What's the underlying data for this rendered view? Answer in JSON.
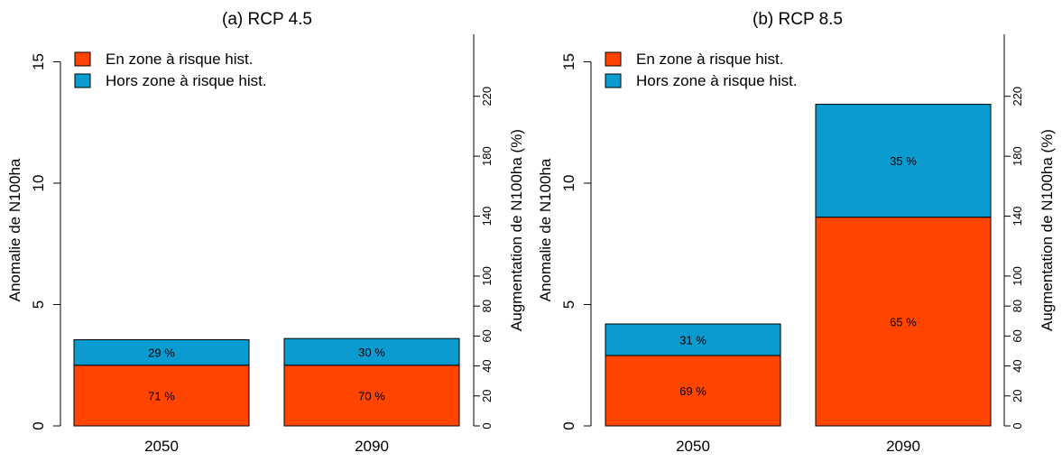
{
  "chart_data": [
    {
      "type": "bar",
      "stacked": true,
      "title": "(a) RCP 4.5",
      "ylabel": "Anomalie de N100ha",
      "y2label": "Augmentation de N100ha (%)",
      "ylim": [
        0,
        16
      ],
      "yticks": [
        0,
        5,
        10,
        15
      ],
      "y2ticks": [
        0,
        20,
        40,
        60,
        80,
        100,
        140,
        180,
        220
      ],
      "y2_per_unit": 16.2,
      "categories": [
        "2050",
        "2090"
      ],
      "series": [
        {
          "name": "En zone à risque hist.",
          "color": "#ff4500",
          "values": [
            2.5,
            2.5
          ],
          "labels": [
            "71 %",
            "70 %"
          ]
        },
        {
          "name": "Hors zone à risque hist.",
          "color": "#0a9bd1",
          "values": [
            1.05,
            1.1
          ],
          "labels": [
            "29 %",
            "30 %"
          ]
        }
      ],
      "legend": "top-left"
    },
    {
      "type": "bar",
      "stacked": true,
      "title": "(b) RCP 8.5",
      "ylabel": "Anomalie de N100ha",
      "y2label": "Augmentation de N100ha (%)",
      "ylim": [
        0,
        16
      ],
      "yticks": [
        0,
        5,
        10,
        15
      ],
      "y2ticks": [
        0,
        20,
        40,
        60,
        80,
        100,
        140,
        180,
        220
      ],
      "y2_per_unit": 16.2,
      "categories": [
        "2050",
        "2090"
      ],
      "series": [
        {
          "name": "En zone à risque hist.",
          "color": "#ff4500",
          "values": [
            2.9,
            8.6
          ],
          "labels": [
            "69 %",
            "65 %"
          ]
        },
        {
          "name": "Hors zone à risque hist.",
          "color": "#0a9bd1",
          "values": [
            1.3,
            4.65
          ],
          "labels": [
            "31 %",
            "35 %"
          ]
        }
      ],
      "legend": "top-left"
    }
  ]
}
